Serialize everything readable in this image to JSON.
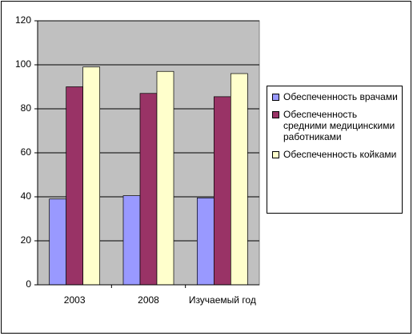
{
  "chart_data": {
    "type": "bar",
    "categories": [
      "2003",
      "2008",
      "Изучаемый год"
    ],
    "series": [
      {
        "name": "Обеспеченность врачами",
        "color": "#9999ff",
        "values": [
          39,
          40.5,
          39.5
        ]
      },
      {
        "name": "Обеспеченность средними медицинскими работниками",
        "color": "#993366",
        "values": [
          90,
          87,
          85.5
        ]
      },
      {
        "name": "Обеспеченность койками",
        "color": "#ffffcc",
        "values": [
          99,
          97,
          96
        ]
      }
    ],
    "ylim": [
      0,
      120
    ],
    "yticks": [
      0,
      20,
      40,
      60,
      80,
      100,
      120
    ],
    "grid": true,
    "legend": "right",
    "plot_background": "#c0c0c0"
  }
}
